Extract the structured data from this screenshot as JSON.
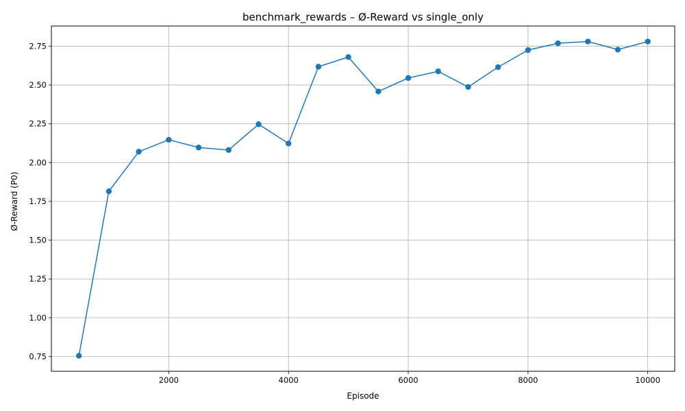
{
  "chart_data": {
    "type": "line",
    "title": "benchmark_rewards – Ø-Reward vs single_only",
    "xlabel": "Episode",
    "ylabel": "Ø-Reward (P0)",
    "xlim": [
      40,
      10450
    ],
    "ylim": [
      0.655,
      2.88
    ],
    "xticks": [
      2000,
      4000,
      6000,
      8000,
      10000
    ],
    "xtick_labels": [
      "2000",
      "4000",
      "6000",
      "8000",
      "10000"
    ],
    "yticks": [
      0.75,
      1.0,
      1.25,
      1.5,
      1.75,
      2.0,
      2.25,
      2.5,
      2.75
    ],
    "ytick_labels": [
      "0.75",
      "1.00",
      "1.25",
      "1.50",
      "1.75",
      "2.00",
      "2.25",
      "2.50",
      "2.75"
    ],
    "grid": true,
    "marker": "circle",
    "color": "#1f77b4",
    "series": [
      {
        "x": [
          500,
          1000,
          1500,
          2000,
          2500,
          3000,
          3500,
          4000,
          4500,
          5000,
          5500,
          6000,
          6500,
          7000,
          7500,
          8000,
          8500,
          9000,
          9500,
          10000
        ],
        "values": [
          0.755,
          1.815,
          2.07,
          2.147,
          2.097,
          2.081,
          2.247,
          2.123,
          2.618,
          2.68,
          2.458,
          2.545,
          2.588,
          2.487,
          2.615,
          2.725,
          2.769,
          2.78,
          2.728,
          2.78
        ]
      }
    ]
  }
}
